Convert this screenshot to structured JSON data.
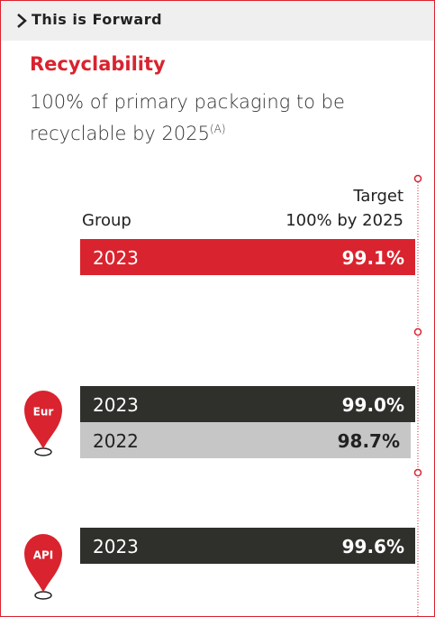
{
  "header": {
    "title": "This is Forward"
  },
  "section": {
    "title": "Recyclability",
    "description": "100% of primary packaging to be recyclable by 2025",
    "footnote": "(A)"
  },
  "target": {
    "label": "Target",
    "value": "100% by 2025"
  },
  "groups": [
    {
      "name": "Group",
      "rows": [
        {
          "year": "2023",
          "value": "99.1%"
        }
      ]
    },
    {
      "name": "Eur",
      "rows": [
        {
          "year": "2023",
          "value": "99.0%"
        },
        {
          "year": "2022",
          "value": "98.7%"
        }
      ]
    },
    {
      "name": "API",
      "rows": [
        {
          "year": "2023",
          "value": "99.6%"
        }
      ]
    }
  ]
}
